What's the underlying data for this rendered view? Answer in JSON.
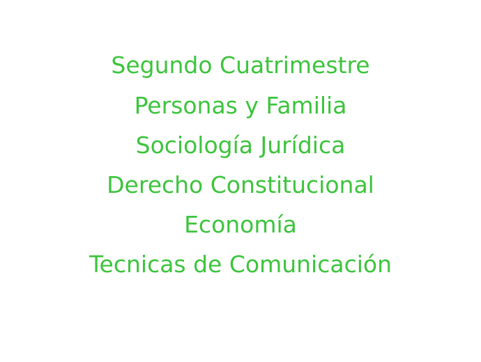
{
  "text_color": "#3dc43d",
  "heading": "Segundo Cuatrimestre",
  "subjects": [
    "Personas y Familia",
    "Sociología Jurídica",
    "Derecho Constitucional",
    "Economía",
    "Tecnicas de Comunicación"
  ]
}
